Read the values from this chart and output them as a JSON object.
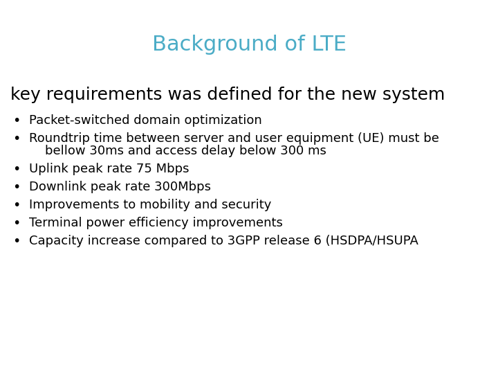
{
  "title": "Background of LTE",
  "title_color": "#4BACC6",
  "title_fontsize": 22,
  "title_fontweight": "normal",
  "subtitle": "key requirements was defined for the new system",
  "subtitle_fontsize": 18,
  "subtitle_color": "#000000",
  "bullet_lines": [
    [
      "Packet-switched domain optimization"
    ],
    [
      "Roundtrip time between server and user equipment (UE) must be",
      "    bellow 30ms and access delay below 300 ms"
    ],
    [
      "Uplink peak rate 75 Mbps"
    ],
    [
      "Downlink peak rate 300Mbps"
    ],
    [
      "Improvements to mobility and security"
    ],
    [
      "Terminal power efficiency improvements"
    ],
    [
      "Capacity increase compared to 3GPP release 6 (HSDPA/HSUPA"
    ]
  ],
  "bullet_fontsize": 13,
  "bullet_color": "#000000",
  "background_color": "#ffffff",
  "fig_width": 7.2,
  "fig_height": 5.4,
  "dpi": 100
}
